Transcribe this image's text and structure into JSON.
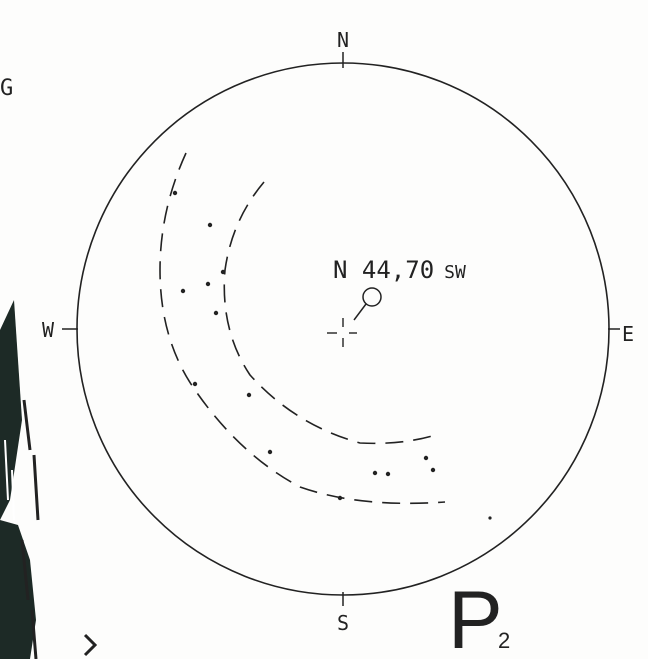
{
  "stereonet": {
    "north": "N",
    "south": "S",
    "east": "E",
    "west": "W",
    "annotation": {
      "main": "N 44,70",
      "suffix": "SW"
    },
    "corner_fragment": "G",
    "plot_label": {
      "letter": "P",
      "subscript": "2"
    }
  }
}
